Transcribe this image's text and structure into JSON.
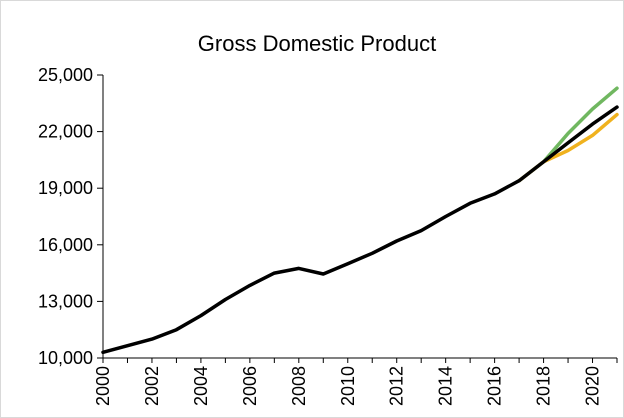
{
  "chart_data": {
    "type": "line",
    "title": "Gross Domestic Product",
    "xlabel": "",
    "ylabel": "",
    "xlim": [
      2000,
      2021
    ],
    "ylim": [
      10000,
      25000
    ],
    "yticks": [
      10000,
      13000,
      16000,
      19000,
      22000,
      25000
    ],
    "ytick_labels": [
      "10,000",
      "13,000",
      "16,000",
      "19,000",
      "22,000",
      "25,000"
    ],
    "xticks": [
      2000,
      2002,
      2004,
      2006,
      2008,
      2010,
      2012,
      2014,
      2016,
      2018,
      2020
    ],
    "xtick_labels": [
      "2000",
      "2002",
      "2004",
      "2006",
      "2008",
      "2010",
      "2012",
      "2014",
      "2016",
      "2018",
      "2020"
    ],
    "grid": false,
    "legend": false,
    "series": [
      {
        "color": "#70b760",
        "x": [
          2017,
          2018,
          2019,
          2020,
          2021
        ],
        "values": [
          19400,
          20400,
          21900,
          23200,
          24300
        ]
      },
      {
        "color": "#f0b21e",
        "x": [
          2017,
          2018,
          2019,
          2020,
          2021
        ],
        "values": [
          19400,
          20400,
          21000,
          21800,
          22900
        ]
      },
      {
        "color": "#000000",
        "x": [
          2000,
          2001,
          2002,
          2003,
          2004,
          2005,
          2006,
          2007,
          2008,
          2009,
          2010,
          2011,
          2012,
          2013,
          2014,
          2015,
          2016,
          2017,
          2018,
          2019,
          2020,
          2021
        ],
        "values": [
          10300,
          10650,
          11000,
          11500,
          12250,
          13100,
          13850,
          14500,
          14750,
          14450,
          15000,
          15550,
          16200,
          16750,
          17500,
          18200,
          18700,
          19400,
          20400,
          21400,
          22400,
          23300
        ]
      }
    ]
  }
}
